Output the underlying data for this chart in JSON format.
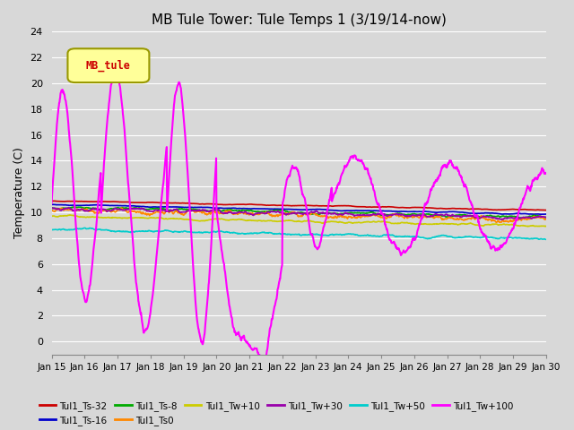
{
  "title": "MB Tule Tower: Tule Temps 1 (3/19/14-now)",
  "xlabel": "",
  "ylabel": "Temperature (C)",
  "ylim": [
    -1,
    24
  ],
  "yticks": [
    0,
    2,
    4,
    6,
    8,
    10,
    12,
    14,
    16,
    18,
    20,
    22,
    24
  ],
  "xtick_labels": [
    "Jan 15",
    "Jan 16",
    "Jan 17",
    "Jan 18",
    "Jan 19",
    "Jan 20",
    "Jan 21",
    "Jan 22",
    "Jan 23",
    "Jan 24",
    "Jan 25",
    "Jan 26",
    "Jan 27",
    "Jan 28",
    "Jan 29",
    "Jan 30"
  ],
  "background_color": "#d8d8d8",
  "plot_bg_color": "#d8d8d8",
  "grid_color": "#ffffff",
  "series": [
    {
      "label": "Tul1_Ts-32",
      "color": "#cc0000",
      "lw": 1.2
    },
    {
      "label": "Tul1_Ts-16",
      "color": "#0000cc",
      "lw": 1.2
    },
    {
      "label": "Tul1_Ts-8",
      "color": "#00aa00",
      "lw": 1.2
    },
    {
      "label": "Tul1_Ts0",
      "color": "#ff8800",
      "lw": 1.2
    },
    {
      "label": "Tul1_Tw+10",
      "color": "#cccc00",
      "lw": 1.2
    },
    {
      "label": "Tul1_Tw+30",
      "color": "#9900aa",
      "lw": 1.2
    },
    {
      "label": "Tul1_Tw+50",
      "color": "#00cccc",
      "lw": 1.2
    },
    {
      "label": "Tul1_Tw+100",
      "color": "#ff00ff",
      "lw": 1.5
    }
  ],
  "legend_label": "MB_tule",
  "legend_color": "#cc0000",
  "legend_bg": "#ffff99",
  "legend_border": "#999900"
}
